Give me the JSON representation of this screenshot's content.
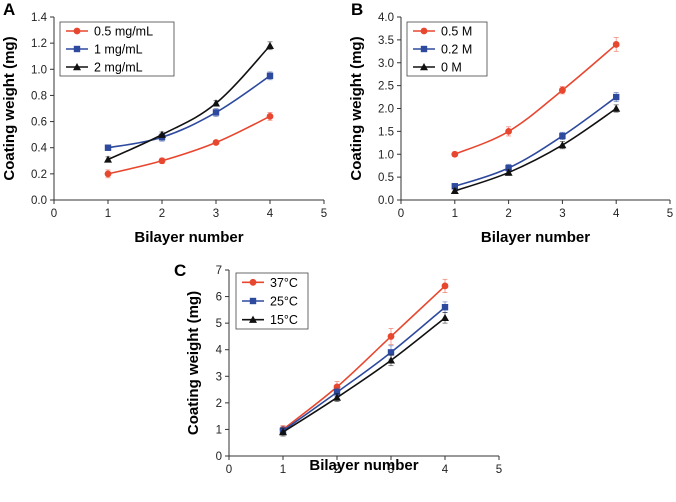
{
  "chart_data": [
    {
      "panel": "A",
      "type": "line",
      "xlabel": "Bilayer number",
      "ylabel": "Coating weight (mg)",
      "xlim": [
        0,
        5
      ],
      "ylim": [
        0,
        1.4
      ],
      "xticks": [
        0,
        1,
        2,
        3,
        4,
        5
      ],
      "yticks": [
        0,
        0.2,
        0.4,
        0.6,
        0.8,
        1.0,
        1.2,
        1.4
      ],
      "ytick_labels": [
        "0.0",
        "0.2",
        "0.4",
        "0.6",
        "0.8",
        "1.0",
        "1.2",
        "1.4"
      ],
      "legend_position": "top-left",
      "series": [
        {
          "name": "0.5 mg/mL",
          "color": "#e8472f",
          "marker": "circle",
          "x": [
            1,
            2,
            3,
            4
          ],
          "values": [
            0.2,
            0.3,
            0.44,
            0.64
          ],
          "errors": [
            0.03,
            0.02,
            0.015,
            0.03
          ]
        },
        {
          "name": "1 mg/mL",
          "color": "#2e4a9e",
          "marker": "square",
          "x": [
            1,
            2,
            3,
            4
          ],
          "values": [
            0.4,
            0.48,
            0.67,
            0.95
          ],
          "errors": [
            0.02,
            0.03,
            0.03,
            0.03
          ]
        },
        {
          "name": "2 mg/mL",
          "color": "#111111",
          "marker": "triangle",
          "x": [
            1,
            2,
            3,
            4
          ],
          "values": [
            0.31,
            0.5,
            0.74,
            1.18
          ],
          "errors": [
            0.02,
            0.02,
            0.02,
            0.03
          ]
        }
      ]
    },
    {
      "panel": "B",
      "type": "line",
      "xlabel": "Bilayer number",
      "ylabel": "Coating weight (mg)",
      "xlim": [
        0,
        5
      ],
      "ylim": [
        0,
        4.0
      ],
      "xticks": [
        0,
        1,
        2,
        3,
        4,
        5
      ],
      "yticks": [
        0,
        0.5,
        1.0,
        1.5,
        2.0,
        2.5,
        3.0,
        3.5,
        4.0
      ],
      "ytick_labels": [
        "0.0",
        "0.5",
        "1.0",
        "1.5",
        "2.0",
        "2.5",
        "3.0",
        "3.5",
        "4.0"
      ],
      "legend_position": "top-left",
      "series": [
        {
          "name": "0.5 M",
          "color": "#e8472f",
          "marker": "circle",
          "x": [
            1,
            2,
            3,
            4
          ],
          "values": [
            1.0,
            1.5,
            2.4,
            3.4
          ],
          "errors": [
            0.05,
            0.1,
            0.08,
            0.15
          ]
        },
        {
          "name": "0.2 M",
          "color": "#2e4a9e",
          "marker": "square",
          "x": [
            1,
            2,
            3,
            4
          ],
          "values": [
            0.3,
            0.7,
            1.4,
            2.25
          ],
          "errors": [
            0.06,
            0.08,
            0.08,
            0.1
          ]
        },
        {
          "name": "0 M",
          "color": "#111111",
          "marker": "triangle",
          "x": [
            1,
            2,
            3,
            4
          ],
          "values": [
            0.2,
            0.6,
            1.2,
            2.0
          ],
          "errors": [
            0.05,
            0.06,
            0.08,
            0.08
          ]
        }
      ]
    },
    {
      "panel": "C",
      "type": "line",
      "xlabel": "Bilayer number",
      "ylabel": "Coating weight (mg)",
      "xlim": [
        0,
        5
      ],
      "ylim": [
        0,
        7
      ],
      "xticks": [
        0,
        1,
        2,
        3,
        4,
        5
      ],
      "yticks": [
        0,
        1,
        2,
        3,
        4,
        5,
        6,
        7
      ],
      "ytick_labels": [
        "0",
        "1",
        "2",
        "3",
        "4",
        "5",
        "6",
        "7"
      ],
      "legend_position": "top-left",
      "series": [
        {
          "name": "37°C",
          "color": "#e8472f",
          "marker": "circle",
          "x": [
            1,
            2,
            3,
            4
          ],
          "values": [
            1.0,
            2.6,
            4.5,
            6.4
          ],
          "errors": [
            0.15,
            0.2,
            0.3,
            0.25
          ]
        },
        {
          "name": "25°C",
          "color": "#2e4a9e",
          "marker": "square",
          "x": [
            1,
            2,
            3,
            4
          ],
          "values": [
            0.95,
            2.4,
            3.9,
            5.6
          ],
          "errors": [
            0.15,
            0.15,
            0.25,
            0.2
          ]
        },
        {
          "name": "15°C",
          "color": "#111111",
          "marker": "triangle",
          "x": [
            1,
            2,
            3,
            4
          ],
          "values": [
            0.9,
            2.2,
            3.6,
            5.2
          ],
          "errors": [
            0.15,
            0.15,
            0.2,
            0.2
          ]
        }
      ]
    }
  ]
}
